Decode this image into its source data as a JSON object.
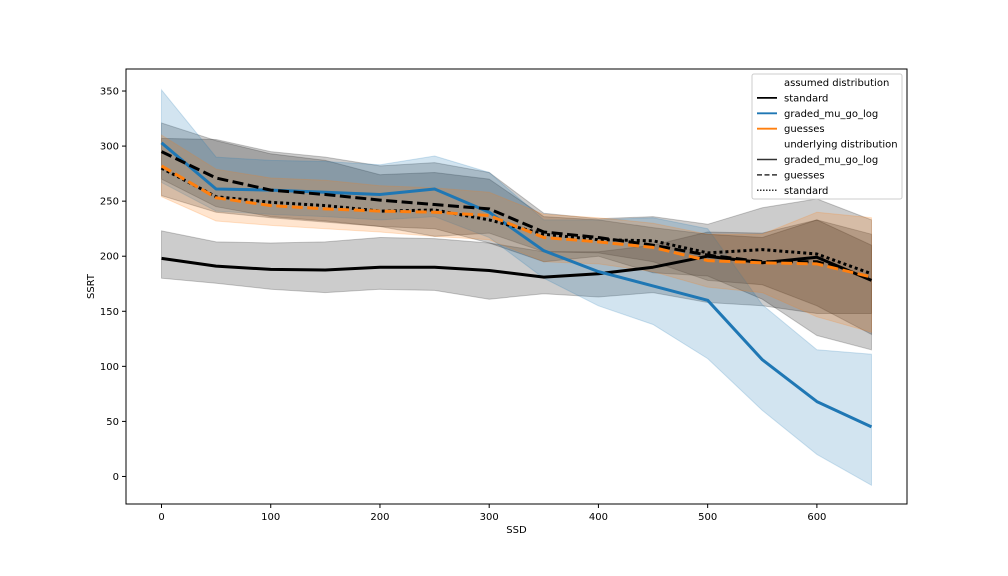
{
  "chart_data": {
    "type": "line",
    "title": "",
    "xlabel": "SSD",
    "ylabel": "SSRT",
    "xlim": [
      -32.5,
      682.5
    ],
    "ylim": [
      -25,
      370
    ],
    "xticks": [
      0,
      100,
      200,
      300,
      400,
      500,
      600
    ],
    "yticks": [
      0,
      50,
      100,
      150,
      200,
      250,
      300,
      350
    ],
    "grid": false,
    "legend_position": "top-right",
    "x": [
      0,
      50,
      100,
      150,
      200,
      250,
      300,
      350,
      400,
      450,
      500,
      550,
      600,
      650
    ],
    "legend": {
      "assumed_title": "assumed distribution",
      "assumed_entries": [
        {
          "label": "standard",
          "color": "#000000"
        },
        {
          "label": "graded_mu_go_log",
          "color": "#1f77b4"
        },
        {
          "label": "guesses",
          "color": "#ff7f0e"
        }
      ],
      "underlying_title": "underlying distribution",
      "underlying_entries": [
        {
          "label": "graded_mu_go_log",
          "style": "solid"
        },
        {
          "label": "guesses",
          "style": "dashed"
        },
        {
          "label": "standard",
          "style": "dotted"
        }
      ]
    },
    "series": [
      {
        "assumed": "standard",
        "underlying": "graded_mu_go_log",
        "color": "#000000",
        "style": "solid",
        "values": [
          198,
          191,
          188,
          187.5,
          190,
          190,
          187,
          181,
          184,
          190,
          200,
          194,
          199,
          178
        ],
        "lower": [
          180,
          175.5,
          170,
          167,
          170,
          169,
          161,
          166,
          163,
          167,
          158,
          155,
          148,
          148
        ],
        "upper": [
          223,
          213,
          212,
          213,
          217,
          216,
          212,
          204,
          204,
          210,
          222,
          221,
          233,
          210
        ]
      },
      {
        "assumed": "standard",
        "underlying": "guesses",
        "color": "#000000",
        "style": "dashed",
        "values": [
          295,
          271,
          260,
          256,
          251,
          247,
          243,
          222,
          217,
          210,
          201,
          195,
          195,
          180
        ],
        "lower": [
          270,
          245,
          236,
          232,
          227,
          218,
          221,
          204,
          203,
          195,
          178,
          174,
          155,
          129
        ],
        "upper": [
          321,
          305,
          293,
          287,
          274,
          276,
          270,
          236,
          233,
          226,
          220,
          217,
          233,
          220
        ]
      },
      {
        "assumed": "standard",
        "underlying": "standard",
        "color": "#000000",
        "style": "dotted",
        "values": [
          280,
          254,
          249,
          246,
          241,
          242,
          233,
          220,
          215,
          214,
          203,
          206,
          202,
          184
        ],
        "lower": [
          255,
          240,
          235,
          231,
          227,
          225,
          212,
          195,
          200,
          185,
          182,
          161,
          128,
          115
        ],
        "upper": [
          307,
          306,
          295,
          290,
          282,
          285,
          276,
          239,
          234,
          236,
          229,
          244,
          252,
          233
        ]
      },
      {
        "assumed": "graded_mu_go_log",
        "underlying": "graded_mu_go_log",
        "color": "#1f77b4",
        "style": "solid",
        "values": [
          303,
          261,
          260,
          258,
          256,
          261,
          240,
          205,
          186,
          173,
          160,
          106,
          68,
          45
        ],
        "lower": [
          267,
          241,
          238,
          236,
          233,
          236,
          217,
          180,
          155,
          138,
          107,
          60,
          20,
          -8
        ],
        "upper": [
          351,
          290,
          287,
          286,
          283,
          291,
          276,
          233,
          233,
          235,
          225,
          156,
          115,
          111
        ]
      },
      {
        "assumed": "guesses",
        "underlying": "guesses",
        "color": "#ff7f0e",
        "style": "dashed",
        "values": [
          282,
          253,
          246,
          243,
          241,
          240,
          237,
          217,
          213,
          208,
          196,
          194,
          193,
          181
        ],
        "lower": [
          254,
          232,
          228,
          225,
          222,
          218,
          215,
          195,
          193,
          186,
          172,
          167,
          145,
          131
        ],
        "upper": [
          310,
          279,
          271,
          269,
          264,
          262,
          258,
          238,
          235,
          230,
          220,
          220,
          240,
          235
        ]
      }
    ]
  }
}
